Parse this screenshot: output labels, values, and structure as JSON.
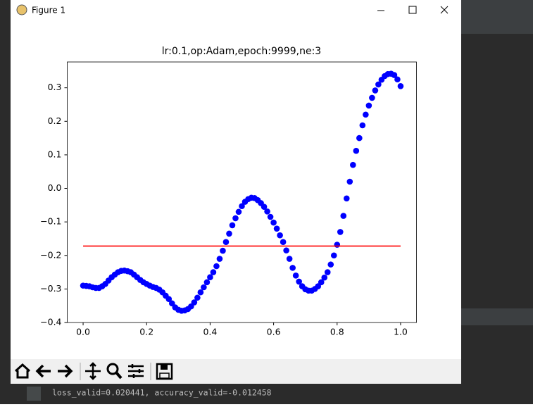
{
  "window": {
    "title": "Figure 1"
  },
  "status_text": "loss_valid=0.020441, accuracy_valid=-0.012458",
  "chart_data": {
    "type": "scatter",
    "title": "lr:0.1,op:Adam,epoch:9999,ne:3",
    "x": [
      0,
      0.01,
      0.02,
      0.03,
      0.04,
      0.05,
      0.06,
      0.07,
      0.08,
      0.09,
      0.1,
      0.11,
      0.12,
      0.13,
      0.14,
      0.15,
      0.16,
      0.17,
      0.18,
      0.19,
      0.2,
      0.21,
      0.22,
      0.23,
      0.24,
      0.25,
      0.26,
      0.27,
      0.28,
      0.29,
      0.3,
      0.31,
      0.32,
      0.33,
      0.34,
      0.35,
      0.36,
      0.37,
      0.38,
      0.39,
      0.4,
      0.41,
      0.42,
      0.43,
      0.44,
      0.45,
      0.46,
      0.47,
      0.48,
      0.49,
      0.5,
      0.51,
      0.52,
      0.53,
      0.54,
      0.55,
      0.56,
      0.57,
      0.58,
      0.59,
      0.6,
      0.61,
      0.62,
      0.63,
      0.64,
      0.65,
      0.66,
      0.67,
      0.68,
      0.69,
      0.7,
      0.71,
      0.72,
      0.73,
      0.74,
      0.75,
      0.76,
      0.77,
      0.78,
      0.79,
      0.8,
      0.81,
      0.82,
      0.83,
      0.84,
      0.85,
      0.86,
      0.87,
      0.88,
      0.89,
      0.9,
      0.91,
      0.92,
      0.93,
      0.94,
      0.95,
      0.96,
      0.97,
      0.98,
      0.99,
      1.0
    ],
    "values": [
      -0.29,
      -0.291,
      -0.292,
      -0.295,
      -0.297,
      -0.297,
      -0.292,
      -0.285,
      -0.275,
      -0.265,
      -0.257,
      -0.25,
      -0.246,
      -0.245,
      -0.247,
      -0.25,
      -0.257,
      -0.265,
      -0.273,
      -0.28,
      -0.285,
      -0.29,
      -0.294,
      -0.297,
      -0.302,
      -0.31,
      -0.32,
      -0.33,
      -0.343,
      -0.355,
      -0.362,
      -0.365,
      -0.364,
      -0.36,
      -0.352,
      -0.34,
      -0.326,
      -0.31,
      -0.295,
      -0.28,
      -0.265,
      -0.25,
      -0.232,
      -0.21,
      -0.186,
      -0.16,
      -0.135,
      -0.11,
      -0.089,
      -0.07,
      -0.053,
      -0.04,
      -0.032,
      -0.028,
      -0.029,
      -0.035,
      -0.044,
      -0.055,
      -0.069,
      -0.085,
      -0.102,
      -0.12,
      -0.14,
      -0.16,
      -0.185,
      -0.21,
      -0.237,
      -0.26,
      -0.278,
      -0.292,
      -0.301,
      -0.305,
      -0.305,
      -0.3,
      -0.292,
      -0.28,
      -0.266,
      -0.25,
      -0.227,
      -0.2,
      -0.168,
      -0.13,
      -0.082,
      -0.03,
      0.02,
      0.07,
      0.112,
      0.15,
      0.188,
      0.22,
      0.247,
      0.27,
      0.292,
      0.31,
      0.324,
      0.335,
      0.341,
      0.342,
      0.338,
      0.325,
      0.305
    ],
    "color": "#0000ff",
    "line": {
      "x": [
        0,
        1
      ],
      "values": [
        -0.172,
        -0.172
      ],
      "color": "#ff0000"
    },
    "xlim": [
      -0.05,
      1.05
    ],
    "ylim": [
      -0.4,
      0.377
    ],
    "xticks": [
      {
        "value": 0,
        "label": "0.0"
      },
      {
        "value": 0.2,
        "label": "0.2"
      },
      {
        "value": 0.4,
        "label": "0.4"
      },
      {
        "value": 0.6,
        "label": "0.6"
      },
      {
        "value": 0.8,
        "label": "0.8"
      },
      {
        "value": 1,
        "label": "1.0"
      }
    ],
    "yticks": [
      {
        "value": -0.4,
        "label": "−0.4"
      },
      {
        "value": -0.3,
        "label": "−0.3"
      },
      {
        "value": -0.2,
        "label": "−0.2"
      },
      {
        "value": -0.1,
        "label": "−0.1"
      },
      {
        "value": 0,
        "label": "0.0"
      },
      0.1,
      0.2,
      0.3
    ]
  }
}
